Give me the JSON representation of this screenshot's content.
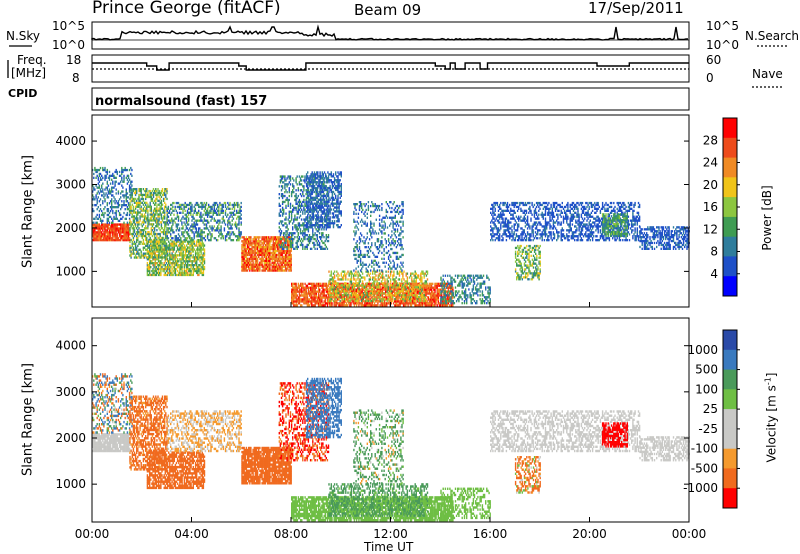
{
  "header": {
    "station": "Prince George (fitACF)",
    "beam": "Beam 09",
    "date": "17/Sep/2011"
  },
  "ancillary": {
    "nsky_label": "N.Sky",
    "nsearch_label": "N.Search",
    "noise_ticks": [
      "10^5",
      "10^0"
    ],
    "freq_label_line1": "Freq.",
    "freq_label_line2": "[MHz]",
    "freq_ticks": [
      "18",
      "8"
    ],
    "nave_label": "Nave",
    "nave_ticks": [
      "60",
      "0"
    ],
    "cpid_label": "CPID",
    "program": "normalsound (fast) 157"
  },
  "chart_data": [
    {
      "type": "heatmap",
      "name": "Power",
      "ylabel": "Slant Range [km]",
      "yticks": [
        "4000",
        "3000",
        "2000",
        "1000"
      ],
      "ylim": [
        180,
        4600
      ],
      "xlim": [
        0,
        24
      ],
      "colorbar_label": "Power [dB]",
      "colorbar_ticks": [
        "28",
        "24",
        "20",
        "16",
        "12",
        "8",
        "4"
      ],
      "colorbar_colors": [
        "#0000ff",
        "#1e50c8",
        "#2f7d9c",
        "#3f9c52",
        "#8cc63f",
        "#f0c419",
        "#f08a24",
        "#ee4b1b",
        "#ff0000"
      ]
    },
    {
      "type": "heatmap",
      "name": "Velocity",
      "ylabel": "Slant Range [km]",
      "yticks": [
        "4000",
        "3000",
        "2000",
        "1000"
      ],
      "ylim": [
        180,
        4600
      ],
      "xlim": [
        0,
        24
      ],
      "xlabel": "Time UT",
      "xticks": [
        "00:00",
        "04:00",
        "08:00",
        "12:00",
        "16:00",
        "20:00",
        "00:00"
      ],
      "colorbar_label": "Velocity [m s",
      "colorbar_label_sup": "-1",
      "colorbar_label_end": "]",
      "colorbar_ticks": [
        "1000",
        "500",
        "100",
        "25",
        "-25",
        "-100",
        "-500",
        "-1000"
      ],
      "colorbar_colors": [
        "#ff0000",
        "#f06a1e",
        "#f59a2e",
        "#c9c9c6",
        "#c9c9c6",
        "#6fbf44",
        "#4a9a5a",
        "#3a7abf",
        "#2a4aa8"
      ]
    }
  ]
}
